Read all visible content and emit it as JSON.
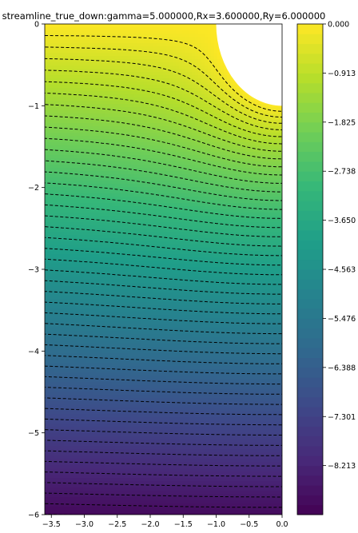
{
  "chart_data": {
    "type": "heatmap",
    "title": "streamline_true_down:gamma=5.000000,Rx=3.600000,Ry=6.000000",
    "xlabel": "",
    "ylabel": "",
    "xlim": [
      -3.6,
      0.0
    ],
    "ylim": [
      -6.0,
      0.0
    ],
    "x_ticks": [
      "−3.5",
      "−3.0",
      "−2.5",
      "−2.0",
      "−1.5",
      "−1.0",
      "−0.5",
      "0.0"
    ],
    "x_tick_values": [
      -3.5,
      -3.0,
      -2.5,
      -2.0,
      -1.5,
      -1.0,
      -0.5,
      0.0
    ],
    "y_ticks": [
      "0",
      "−1",
      "−2",
      "−3",
      "−4",
      "−5",
      "−6"
    ],
    "y_tick_values": [
      0,
      -1,
      -2,
      -3,
      -4,
      -5,
      -6
    ],
    "colormap": "viridis",
    "contour_style": "black dashed",
    "contour_count": 45,
    "colorbar": {
      "range": [
        -9.125,
        0.0
      ],
      "tick_labels": [
        "0.000",
        "−0.913",
        "−1.825",
        "−2.738",
        "−3.650",
        "−4.563",
        "−5.476",
        "−6.388",
        "−7.301",
        "−8.213"
      ],
      "tick_values": [
        0.0,
        -0.913,
        -1.825,
        -2.738,
        -3.65,
        -4.563,
        -5.476,
        -6.388,
        -7.301,
        -8.213
      ]
    },
    "obstacle": {
      "shape": "circular cutout (white) at top-right corner",
      "center": [
        0.0,
        0.0
      ],
      "radius": 1.0
    },
    "colors": {
      "viridis_stops": [
        "#440154",
        "#482878",
        "#3e4989",
        "#31688e",
        "#26828e",
        "#1f9e89",
        "#35b779",
        "#6ece58",
        "#b5de2b",
        "#fde725"
      ],
      "contour": "#000000"
    }
  }
}
